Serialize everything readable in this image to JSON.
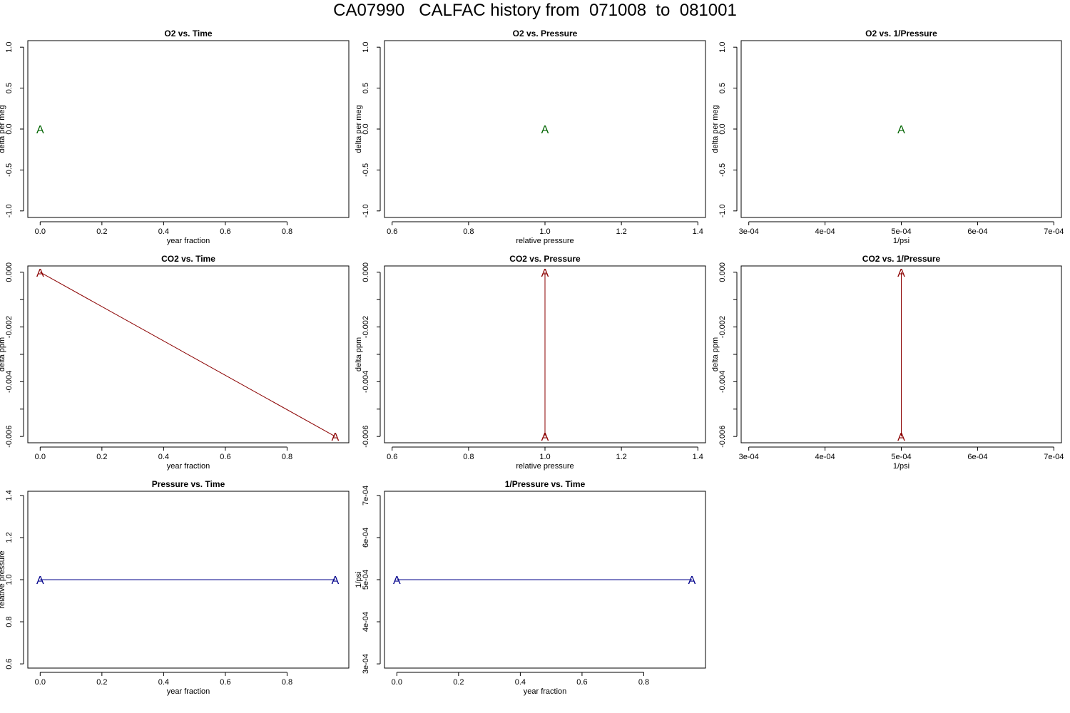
{
  "page": {
    "title": "CA07990   CALFAC history from  071008  to  081001"
  },
  "colors": {
    "o2": "#006400",
    "co2": "#8b0000",
    "pressure": "#00008b",
    "axis": "#000000"
  },
  "marker_label": "A",
  "chart_data": [
    {
      "type": "scatter",
      "title": "O2 vs. Time",
      "xlabel": "year fraction",
      "ylabel": "delta per meg",
      "xlim": [
        -0.04,
        1.0
      ],
      "ylim": [
        -1.08,
        1.08
      ],
      "xticks": [
        0.0,
        0.2,
        0.4,
        0.6,
        0.8
      ],
      "xticklabels": [
        "0.0",
        "0.2",
        "0.4",
        "0.6",
        "0.8"
      ],
      "yticks": [
        -1.0,
        -0.5,
        0.0,
        0.5,
        1.0
      ],
      "yticklabels": [
        "-1.0",
        "-0.5",
        "0.0",
        "0.5",
        "1.0"
      ],
      "series": [
        {
          "x": [
            0.0
          ],
          "y": [
            0.0
          ],
          "color_key": "o2",
          "line": false
        }
      ]
    },
    {
      "type": "scatter",
      "title": "O2 vs. Pressure",
      "xlabel": "relative pressure",
      "ylabel": "delta per meg",
      "xlim": [
        0.58,
        1.42
      ],
      "ylim": [
        -1.08,
        1.08
      ],
      "xticks": [
        0.6,
        0.8,
        1.0,
        1.2,
        1.4
      ],
      "xticklabels": [
        "0.6",
        "0.8",
        "1.0",
        "1.2",
        "1.4"
      ],
      "yticks": [
        -1.0,
        -0.5,
        0.0,
        0.5,
        1.0
      ],
      "yticklabels": [
        "-1.0",
        "-0.5",
        "0.0",
        "0.5",
        "1.0"
      ],
      "series": [
        {
          "x": [
            1.0
          ],
          "y": [
            0.0
          ],
          "color_key": "o2",
          "line": false
        }
      ]
    },
    {
      "type": "scatter",
      "title": "O2 vs. 1/Pressure",
      "xlabel": "1/psi",
      "ylabel": "delta per meg",
      "xlim": [
        0.00029,
        0.00071
      ],
      "ylim": [
        -1.08,
        1.08
      ],
      "xticks": [
        0.0003,
        0.0004,
        0.0005,
        0.0006,
        0.0007
      ],
      "xticklabels": [
        "3e-04",
        "4e-04",
        "5e-04",
        "6e-04",
        "7e-04"
      ],
      "yticks": [
        -1.0,
        -0.5,
        0.0,
        0.5,
        1.0
      ],
      "yticklabels": [
        "-1.0",
        "-0.5",
        "0.0",
        "0.5",
        "1.0"
      ],
      "series": [
        {
          "x": [
            0.0005
          ],
          "y": [
            0.0
          ],
          "color_key": "o2",
          "line": false
        }
      ]
    },
    {
      "type": "line",
      "title": "CO2 vs. Time",
      "xlabel": "year fraction",
      "ylabel": "delta ppm",
      "xlim": [
        -0.04,
        1.0
      ],
      "ylim": [
        -0.00623,
        0.00023
      ],
      "xticks": [
        0.0,
        0.2,
        0.4,
        0.6,
        0.8
      ],
      "xticklabels": [
        "0.0",
        "0.2",
        "0.4",
        "0.6",
        "0.8"
      ],
      "yticks": [
        -0.006,
        -0.005,
        -0.004,
        -0.003,
        -0.002,
        -0.001,
        0.0
      ],
      "yticklabels": [
        "-0.006",
        "",
        "-0.004",
        "",
        "-0.002",
        "",
        "0.000"
      ],
      "series": [
        {
          "x": [
            0.0,
            0.956
          ],
          "y": [
            0.0,
            -0.006
          ],
          "color_key": "co2",
          "line": true
        }
      ]
    },
    {
      "type": "line",
      "title": "CO2 vs. Pressure",
      "xlabel": "relative pressure",
      "ylabel": "delta ppm",
      "xlim": [
        0.58,
        1.42
      ],
      "ylim": [
        -0.00623,
        0.00023
      ],
      "xticks": [
        0.6,
        0.8,
        1.0,
        1.2,
        1.4
      ],
      "xticklabels": [
        "0.6",
        "0.8",
        "1.0",
        "1.2",
        "1.4"
      ],
      "yticks": [
        -0.006,
        -0.005,
        -0.004,
        -0.003,
        -0.002,
        -0.001,
        0.0
      ],
      "yticklabels": [
        "-0.006",
        "",
        "-0.004",
        "",
        "-0.002",
        "",
        "0.000"
      ],
      "series": [
        {
          "x": [
            1.0,
            1.0
          ],
          "y": [
            0.0,
            -0.006
          ],
          "color_key": "co2",
          "line": true
        }
      ]
    },
    {
      "type": "line",
      "title": "CO2 vs. 1/Pressure",
      "xlabel": "1/psi",
      "ylabel": "delta ppm",
      "xlim": [
        0.00029,
        0.00071
      ],
      "ylim": [
        -0.00623,
        0.00023
      ],
      "xticks": [
        0.0003,
        0.0004,
        0.0005,
        0.0006,
        0.0007
      ],
      "xticklabels": [
        "3e-04",
        "4e-04",
        "5e-04",
        "6e-04",
        "7e-04"
      ],
      "yticks": [
        -0.006,
        -0.005,
        -0.004,
        -0.003,
        -0.002,
        -0.001,
        0.0
      ],
      "yticklabels": [
        "-0.006",
        "",
        "-0.004",
        "",
        "-0.002",
        "",
        "0.000"
      ],
      "series": [
        {
          "x": [
            0.0005,
            0.0005
          ],
          "y": [
            0.0,
            -0.006
          ],
          "color_key": "co2",
          "line": true
        }
      ]
    },
    {
      "type": "line",
      "title": "Pressure vs. Time",
      "xlabel": "year fraction",
      "ylabel": "relative pressure",
      "xlim": [
        -0.04,
        1.0
      ],
      "ylim": [
        0.58,
        1.42
      ],
      "xticks": [
        0.0,
        0.2,
        0.4,
        0.6,
        0.8
      ],
      "xticklabels": [
        "0.0",
        "0.2",
        "0.4",
        "0.6",
        "0.8"
      ],
      "yticks": [
        0.6,
        0.8,
        1.0,
        1.2,
        1.4
      ],
      "yticklabels": [
        "0.6",
        "0.8",
        "1.0",
        "1.2",
        "1.4"
      ],
      "series": [
        {
          "x": [
            0.0,
            0.956
          ],
          "y": [
            1.0,
            1.0
          ],
          "color_key": "pressure",
          "line": true
        }
      ]
    },
    {
      "type": "line",
      "title": "1/Pressure vs. Time",
      "xlabel": "year fraction",
      "ylabel": "1/psi",
      "xlim": [
        -0.04,
        1.0
      ],
      "ylim": [
        0.00029,
        0.00071
      ],
      "xticks": [
        0.0,
        0.2,
        0.4,
        0.6,
        0.8
      ],
      "xticklabels": [
        "0.0",
        "0.2",
        "0.4",
        "0.6",
        "0.8"
      ],
      "yticks": [
        0.0003,
        0.0004,
        0.0005,
        0.0006,
        0.0007
      ],
      "yticklabels": [
        "3e-04",
        "4e-04",
        "5e-04",
        "6e-04",
        "7e-04"
      ],
      "series": [
        {
          "x": [
            0.0,
            0.956
          ],
          "y": [
            0.0005,
            0.0005
          ],
          "color_key": "pressure",
          "line": true
        }
      ]
    }
  ]
}
